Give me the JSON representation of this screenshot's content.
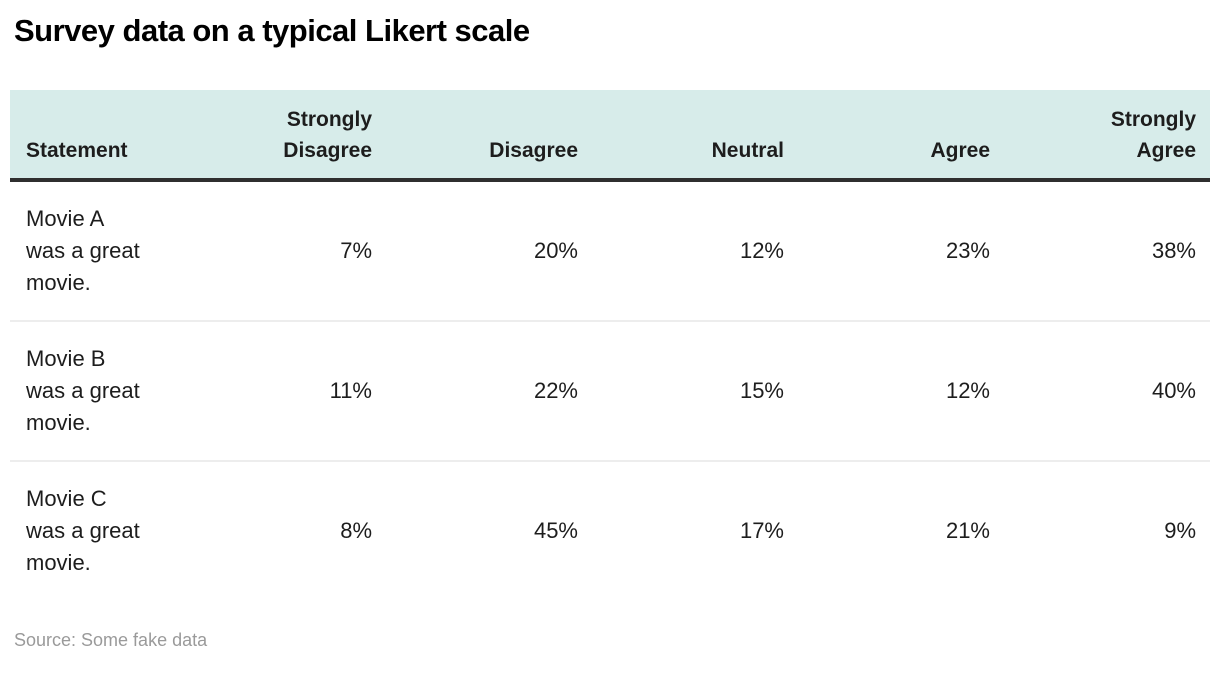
{
  "title": "Survey data on a typical Likert scale",
  "source": "Source: Some fake data",
  "colors": {
    "header_background": "#d7ecea",
    "header_rule": "#2f2f2f",
    "row_divider": "#ededed",
    "body_text": "#1d1d1d",
    "title_text": "#000000",
    "source_text": "#9a9a9a"
  },
  "table": {
    "columns": [
      "Statement",
      "Strongly\nDisagree",
      "Disagree",
      "Neutral",
      "Agree",
      "Strongly\nAgree"
    ],
    "rows": [
      [
        "Movie A\nwas a great\nmovie.",
        "7%",
        "20%",
        "12%",
        "23%",
        "38%"
      ],
      [
        "Movie B\nwas a great\nmovie.",
        "11%",
        "22%",
        "15%",
        "12%",
        "40%"
      ],
      [
        "Movie C\nwas a great\nmovie.",
        "8%",
        "45%",
        "17%",
        "21%",
        "9%"
      ]
    ]
  },
  "chart_data": {
    "type": "table",
    "title": "Survey data on a typical Likert scale",
    "columns": [
      "Statement",
      "Strongly Disagree",
      "Disagree",
      "Neutral",
      "Agree",
      "Strongly Agree"
    ],
    "rows": [
      [
        "Movie A was a great movie.",
        7,
        20,
        12,
        23,
        38
      ],
      [
        "Movie B was a great movie.",
        11,
        22,
        15,
        12,
        40
      ],
      [
        "Movie C was a great movie.",
        8,
        45,
        17,
        21,
        9
      ]
    ],
    "value_unit": "%",
    "source": "Some fake data",
    "layout": {
      "header_background": "#d7ecea",
      "statement_column_align": "left",
      "value_columns_align": "right"
    }
  }
}
